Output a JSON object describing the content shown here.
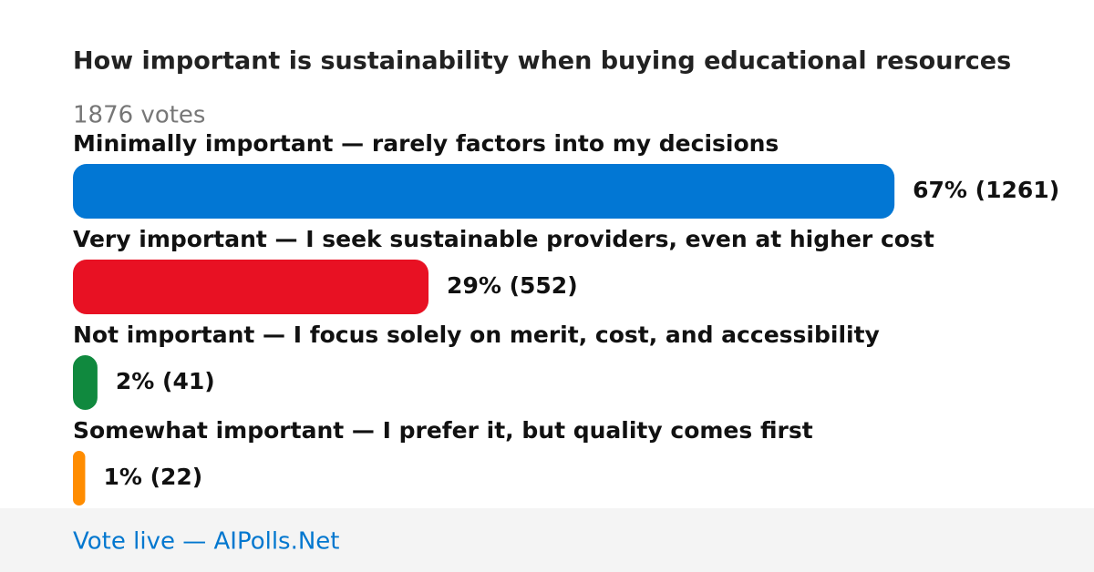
{
  "chart_data": {
    "type": "bar",
    "title": "How important is sustainability when buying educational resources",
    "subtitle": "1876 votes",
    "categories": [
      "Minimally important — rarely factors into my decisions",
      "Very important — I seek sustainable providers, even at higher cost",
      "Not important — I focus solely on merit, cost, and accessibility",
      "Somewhat important — I prefer it, but quality comes first"
    ],
    "values": [
      67,
      29,
      2,
      1
    ],
    "value_labels": [
      "67% (1261)",
      "29% (552)",
      "2% (41)",
      "1% (22)"
    ],
    "colors": [
      "#0277d4",
      "#e81123",
      "#10893e",
      "#ff8c00"
    ],
    "footer": "Vote live — AIPolls.Net"
  }
}
